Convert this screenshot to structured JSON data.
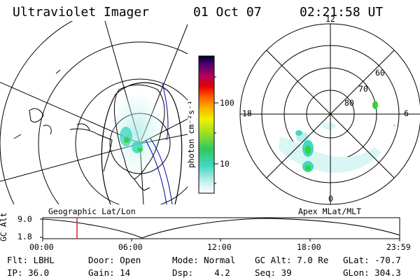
{
  "header": {
    "instrument": "Ultraviolet Imager",
    "date": "01 Oct 07",
    "time": "02:21:58 UT"
  },
  "colorbar": {
    "label": "photon cm⁻²s⁻¹",
    "ticks": [
      "100",
      "10"
    ]
  },
  "polar_plot": {
    "mlt_labels": [
      "12",
      "18",
      "6",
      "0"
    ],
    "mlat_labels": [
      "60",
      "70",
      "80"
    ]
  },
  "timeline": {
    "ylabel": "GC Alt",
    "yticks": [
      "9.0",
      "1.8"
    ],
    "left_title": "Geographic Lat/Lon",
    "right_title": "Apex MLat/MLT",
    "xticks": [
      "00:00",
      "06:00",
      "12:00",
      "18:00",
      "23:59"
    ],
    "current_marker_time": "02:21:58"
  },
  "info": {
    "flt": "Flt: LBHL",
    "ip": "IP: 36.0",
    "door": "Door: Open",
    "gain": "Gain: 14",
    "mode": "Mode: Normal",
    "dsp": "Dsp:    4.2",
    "gc_alt": "GC Alt: 7.0 Re",
    "seq": "Seq: 39",
    "glat": "GLat: -70.7",
    "glon": "GLon: 304.3"
  },
  "colors": {
    "aurora_light": "#bfeee8",
    "aurora_mid": "#40d8c0",
    "aurora_green": "#39d13a",
    "marker": "#dd2222",
    "orbit_blue": "#0000aa"
  }
}
